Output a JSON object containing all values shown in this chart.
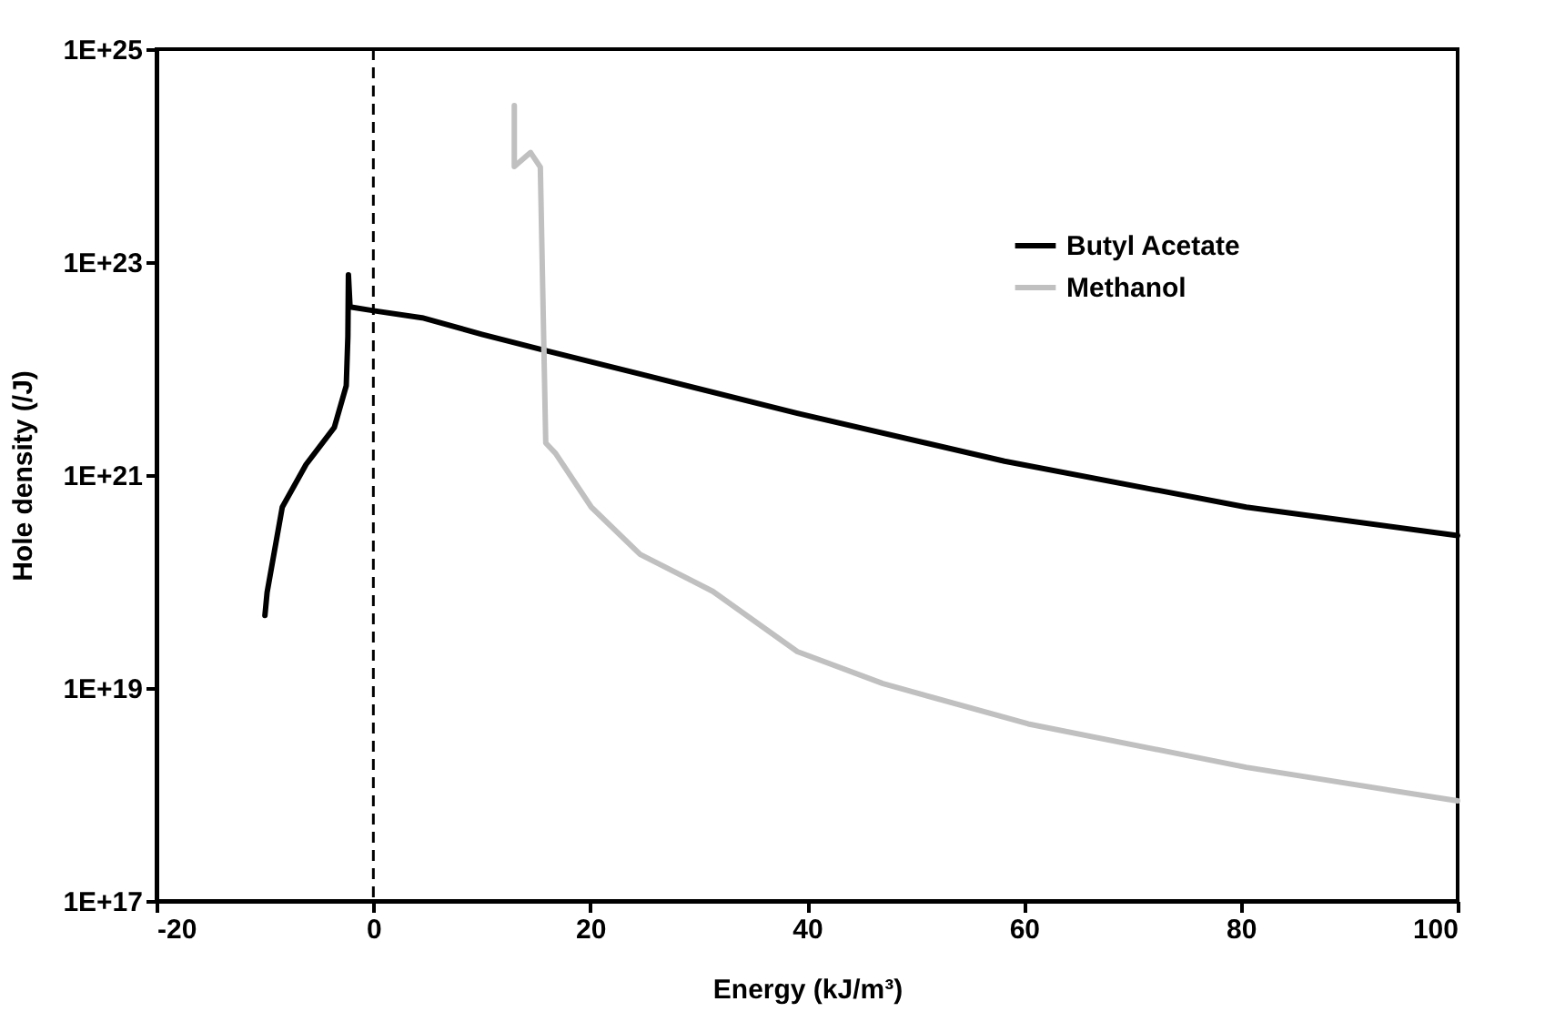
{
  "chart_data": {
    "type": "line",
    "xlabel": "Energy (kJ/m³)",
    "ylabel": "Hole density (/J)",
    "log": "y",
    "xlim": [
      -20,
      100
    ],
    "xticks": [
      -20,
      0,
      20,
      40,
      60,
      80,
      100
    ],
    "ylim": [
      1e+17,
      1e+25
    ],
    "yticks": [
      {
        "value": 1e+17,
        "label": "1E+17"
      },
      {
        "value": 1e+19,
        "label": "1E+19"
      },
      {
        "value": 1e+21,
        "label": "1E+21"
      },
      {
        "value": 1e+23,
        "label": "1E+23"
      },
      {
        "value": 1e+25,
        "label": "1E+25"
      }
    ],
    "grid": false,
    "legend": "top right",
    "line_style": "solid",
    "marker": "none",
    "ref_lines": [
      {
        "axis": "x",
        "value": 0,
        "label": null,
        "color": "#000000",
        "line_style": "dashed"
      }
    ],
    "series": [
      {
        "name": "Butyl Acetate",
        "color": "#000000",
        "x": [
          -10,
          -9.8,
          -8.4,
          -6.2,
          -3.6,
          -2.5,
          -2.35,
          -2.3,
          -2.15,
          0,
          4.5,
          10,
          15.6,
          25,
          39.1,
          58.2,
          80.5,
          100
        ],
        "values": [
          4.8e+19,
          7.9e+19,
          5e+20,
          1.26e+21,
          2.8e+21,
          6.9e+21,
          2e+22,
          7.6e+22,
          3.8e+22,
          3.5e+22,
          3e+22,
          2.1e+22,
          1.5e+22,
          8.7e+21,
          3.8e+21,
          1.35e+21,
          5e+20,
          2.7e+20
        ]
      },
      {
        "name": "Methanol",
        "color": "#c0c0c0",
        "x": [
          13.0,
          13.0,
          14.5,
          15.4,
          15.9,
          16.8,
          20.1,
          24.6,
          31.3,
          39.1,
          47,
          60.4,
          80.5,
          100
        ],
        "values": [
          2.95e+24,
          7.9e+23,
          1.07e+24,
          7.8e+23,
          2e+21,
          1.6e+21,
          5e+20,
          1.8e+20,
          8.1e+19,
          2.2e+19,
          1.1e+19,
          4.6e+18,
          1.8e+18,
          8.7e+17
        ]
      }
    ]
  }
}
